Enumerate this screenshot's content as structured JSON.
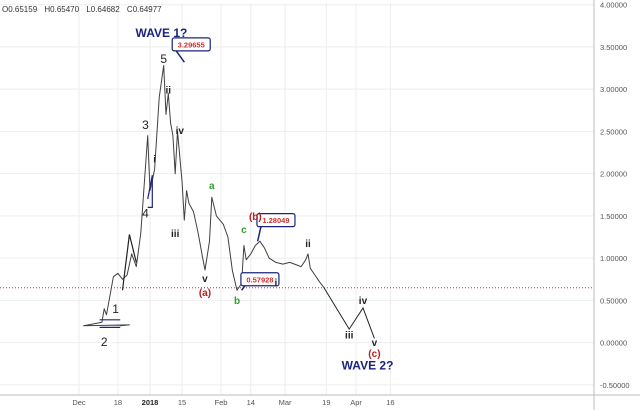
{
  "header": {
    "ohlc": {
      "open": "O0.65159",
      "high": "H0.65470",
      "low": "L0.64682",
      "close": "C0.64977"
    }
  },
  "chart_data": {
    "type": "line",
    "x_axis_ticks": [
      "Dec",
      "18",
      "2018",
      "15",
      "Feb",
      "14",
      "Mar",
      "19",
      "Apr",
      "16"
    ],
    "y_axis_ticks": [
      "-0.50000",
      "0.00000",
      "0.50000",
      "1.00000",
      "1.50000",
      "2.00000",
      "2.50000",
      "3.00000",
      "3.50000",
      "4.00000"
    ],
    "ylim": [
      -0.62,
      4.02
    ],
    "price_series": [
      [
        "Nov 25",
        0.2
      ],
      [
        "Nov 29",
        0.21
      ],
      [
        "Dec 3",
        0.2
      ],
      [
        "Dec 7",
        0.22
      ],
      [
        "Dec 11",
        0.24
      ],
      [
        "Dec 12",
        0.4
      ],
      [
        "Dec 13",
        0.33
      ],
      [
        "Dec 16",
        0.78
      ],
      [
        "Dec 18",
        0.82
      ],
      [
        "Dec 20",
        0.75
      ],
      [
        "Dec 22",
        0.8
      ],
      [
        "Dec 24",
        1.05
      ],
      [
        "Dec 26",
        0.9
      ],
      [
        "Dec 28",
        1.3
      ],
      [
        "Dec 31",
        2.45
      ],
      [
        "Jan 1",
        1.8
      ],
      [
        "Jan 2",
        1.92
      ],
      [
        "Jan 3",
        2.05
      ],
      [
        "Jan 5",
        2.9
      ],
      [
        "Jan 7",
        3.28
      ],
      [
        "Jan 8",
        2.7
      ],
      [
        "Jan 9",
        2.95
      ],
      [
        "Jan 10",
        2.6
      ],
      [
        "Jan 11",
        2.45
      ],
      [
        "Jan 12",
        2.0
      ],
      [
        "Jan 13",
        2.5
      ],
      [
        "Jan 15",
        1.9
      ],
      [
        "Jan 16",
        1.45
      ],
      [
        "Jan 17",
        1.8
      ],
      [
        "Jan 18",
        1.65
      ],
      [
        "Jan 20",
        1.55
      ],
      [
        "Jan 22",
        1.3
      ],
      [
        "Jan 24",
        1.0
      ],
      [
        "Jan 25",
        0.86
      ],
      [
        "Jan 27",
        1.2
      ],
      [
        "Jan 28",
        1.72
      ],
      [
        "Jan 30",
        1.5
      ],
      [
        "Feb 2",
        1.4
      ],
      [
        "Feb 4",
        1.25
      ],
      [
        "Feb 6",
        0.85
      ],
      [
        "Feb 8",
        0.62
      ],
      [
        "Feb 10",
        0.7
      ],
      [
        "Feb 11",
        1.15
      ],
      [
        "Feb 12",
        0.98
      ],
      [
        "Feb 14",
        1.05
      ],
      [
        "Feb 16",
        1.15
      ],
      [
        "Feb 18",
        1.2
      ],
      [
        "Feb 20",
        1.12
      ],
      [
        "Feb 22",
        1.0
      ],
      [
        "Feb 25",
        0.95
      ],
      [
        "Feb 28",
        0.93
      ],
      [
        "Mar 3",
        0.95
      ],
      [
        "Mar 6",
        0.92
      ],
      [
        "Mar 8",
        0.9
      ],
      [
        "Mar 10",
        0.98
      ],
      [
        "Mar 11",
        1.05
      ],
      [
        "Mar 12",
        0.88
      ],
      [
        "Mar 14",
        0.8
      ],
      [
        "Mar 16",
        0.72
      ],
      [
        "Mar 18",
        0.65
      ]
    ],
    "projection_path": [
      [
        "Mar 18",
        0.65
      ],
      [
        "Mar 29",
        0.16
      ],
      [
        "Apr 4",
        0.41
      ],
      [
        "Apr 9",
        0.05
      ]
    ],
    "horizontal_line": {
      "y": 0.64977,
      "style": "dotted",
      "color": "#d32f2f"
    },
    "price_boxes": [
      {
        "text": "3.29655",
        "x": "Jan 19",
        "y": 3.53,
        "pointer_to": [
          "Jan 16",
          3.32
        ]
      },
      {
        "text": "1.28049",
        "x": "Feb 25",
        "y": 1.45,
        "pointer_to": [
          "Feb 17",
          1.2
        ]
      },
      {
        "text": "0.57928",
        "x": "Feb 18",
        "y": 0.75,
        "pointer_to": [
          "Feb 10",
          0.62
        ]
      }
    ],
    "annotations": [
      {
        "text": "WAVE 1?",
        "x": "Jan 6",
        "y": 3.62,
        "color": "#1a237e",
        "weight": "bold",
        "size": 12
      },
      {
        "text": "5",
        "x": "Jan 7",
        "y": 3.31,
        "color": "#222222",
        "size": 12
      },
      {
        "text": "3",
        "x": "Dec 30",
        "y": 2.53,
        "color": "#222222",
        "size": 12
      },
      {
        "text": "4",
        "x": "Dec 30",
        "y": 1.48,
        "color": "#222222",
        "size": 12
      },
      {
        "text": "1",
        "x": "Nov 23",
        "y": 0.35,
        "color": "#222222",
        "size": 12
      },
      {
        "text": "2",
        "x": "Dec 12",
        "y": -0.04,
        "color": "#222222",
        "size": 12
      },
      {
        "text": "ii",
        "x": "Jan 9",
        "y": 2.95,
        "color": "#222222",
        "weight": "bold",
        "size": 10
      },
      {
        "text": "iv",
        "x": "Jan 14",
        "y": 2.47,
        "color": "#222222",
        "weight": "bold",
        "size": 10
      },
      {
        "text": "i",
        "x": "Jan 3",
        "y": 2.13,
        "color": "#222222",
        "weight": "bold",
        "size": 10
      },
      {
        "text": "iii",
        "x": "Jan 12",
        "y": 1.25,
        "color": "#222222",
        "weight": "bold",
        "size": 10
      },
      {
        "text": "a",
        "x": "Jan 28",
        "y": 1.82,
        "color": "#2e9e2e",
        "weight": "bold",
        "size": 10
      },
      {
        "text": "v",
        "x": "Jan 25",
        "y": 0.72,
        "color": "#222222",
        "weight": "bold",
        "size": 10
      },
      {
        "text": "(a)",
        "x": "Jan 25",
        "y": 0.55,
        "color": "#b71c1c",
        "weight": "bold",
        "size": 10
      },
      {
        "text": "c",
        "x": "Feb 11",
        "y": 1.3,
        "color": "#2e9e2e",
        "weight": "bold",
        "size": 10
      },
      {
        "text": "(b)",
        "x": "Feb 16",
        "y": 1.45,
        "color": "#b71c1c",
        "weight": "bold",
        "size": 10
      },
      {
        "text": "b",
        "x": "Feb 8",
        "y": 0.46,
        "color": "#2e9e2e",
        "weight": "bold",
        "size": 10
      },
      {
        "text": "i",
        "x": "Feb 25",
        "y": 0.67,
        "color": "#222222",
        "weight": "bold",
        "size": 10
      },
      {
        "text": "ii",
        "x": "Mar 11",
        "y": 1.13,
        "color": "#222222",
        "weight": "bold",
        "size": 10
      },
      {
        "text": "iii",
        "x": "Mar 29",
        "y": 0.05,
        "color": "#222222",
        "weight": "bold",
        "size": 10
      },
      {
        "text": "iv",
        "x": "Apr 4",
        "y": 0.46,
        "color": "#222222",
        "weight": "bold",
        "size": 10
      },
      {
        "text": "v",
        "x": "Apr 9",
        "y": -0.04,
        "color": "#222222",
        "weight": "bold",
        "size": 10
      },
      {
        "text": "(c)",
        "x": "Apr 9",
        "y": -0.17,
        "color": "#b71c1c",
        "weight": "bold",
        "size": 10
      },
      {
        "text": "WAVE 2?",
        "x": "Apr 6",
        "y": -0.32,
        "color": "#1a237e",
        "weight": "bold",
        "size": 12
      }
    ],
    "wave_lines": [
      {
        "points": [
          [
            "Nov 25",
            0.27
          ],
          [
            "Dec 10",
            0.27
          ]
        ],
        "color": "#1a237e"
      },
      {
        "points": [
          [
            "Nov 25",
            0.18
          ],
          [
            "Dec 10",
            0.18
          ]
        ],
        "color": "#1a237e"
      },
      {
        "points": [
          [
            "Dec 20",
            0.62
          ],
          [
            "Dec 23",
            1.28
          ],
          [
            "Dec 26",
            0.95
          ]
        ],
        "color": "#222222"
      },
      {
        "points": [
          [
            "Dec 31",
            1.7
          ],
          [
            "Jan 2",
            1.98
          ],
          [
            "Jan 2",
            1.6
          ],
          [
            "Dec 31",
            1.6
          ]
        ],
        "color": "#1a237e"
      }
    ],
    "colors": {
      "price_line": "#404040",
      "grid": "#eeeeee",
      "axis_text": "#555555",
      "box_border": "#1a237e",
      "box_text": "#d32f2f"
    }
  }
}
